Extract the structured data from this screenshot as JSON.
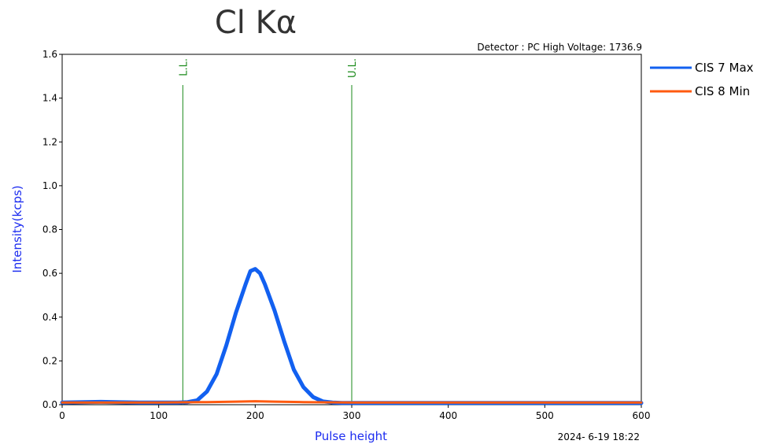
{
  "chart_data": {
    "type": "line",
    "title": "Cl Kα",
    "xlabel": "Pulse height",
    "ylabel": "Intensity(kcps)",
    "detector_info": "Detector : PC High Voltage: 1736.9",
    "timestamp": "2024- 6-19 18:22",
    "xlim": [
      0,
      600
    ],
    "ylim": [
      0,
      1.6
    ],
    "x_ticks": [
      "0",
      "100",
      "200",
      "300",
      "400",
      "500",
      "600"
    ],
    "y_ticks": [
      "0.0",
      "0.2",
      "0.4",
      "0.6",
      "0.8",
      "1.0",
      "1.2",
      "1.4",
      "1.6"
    ],
    "markers": [
      {
        "label": "L.L.",
        "x": 125,
        "color": "#1a8a1a"
      },
      {
        "label": "U.L.",
        "x": 300,
        "color": "#1a8a1a"
      }
    ],
    "legend_position": "right",
    "series": [
      {
        "name": "CIS 7 Max",
        "color": "#1260f0",
        "x": [
          0,
          40,
          60,
          80,
          100,
          120,
          130,
          140,
          150,
          160,
          170,
          180,
          190,
          195,
          200,
          205,
          210,
          220,
          230,
          240,
          250,
          260,
          270,
          280,
          290,
          300,
          350,
          400,
          500,
          600
        ],
        "y": [
          0.01,
          0.013,
          0.011,
          0.01,
          0.01,
          0.01,
          0.012,
          0.02,
          0.06,
          0.14,
          0.27,
          0.42,
          0.55,
          0.61,
          0.62,
          0.6,
          0.55,
          0.43,
          0.29,
          0.16,
          0.08,
          0.035,
          0.015,
          0.01,
          0.008,
          0.008,
          0.008,
          0.008,
          0.008,
          0.008
        ]
      },
      {
        "name": "CIS 8 Min",
        "color": "#ff5a10",
        "x": [
          0,
          100,
          150,
          180,
          200,
          220,
          250,
          300,
          400,
          500,
          600
        ],
        "y": [
          0.01,
          0.01,
          0.012,
          0.014,
          0.016,
          0.014,
          0.012,
          0.01,
          0.01,
          0.01,
          0.01
        ]
      }
    ]
  }
}
